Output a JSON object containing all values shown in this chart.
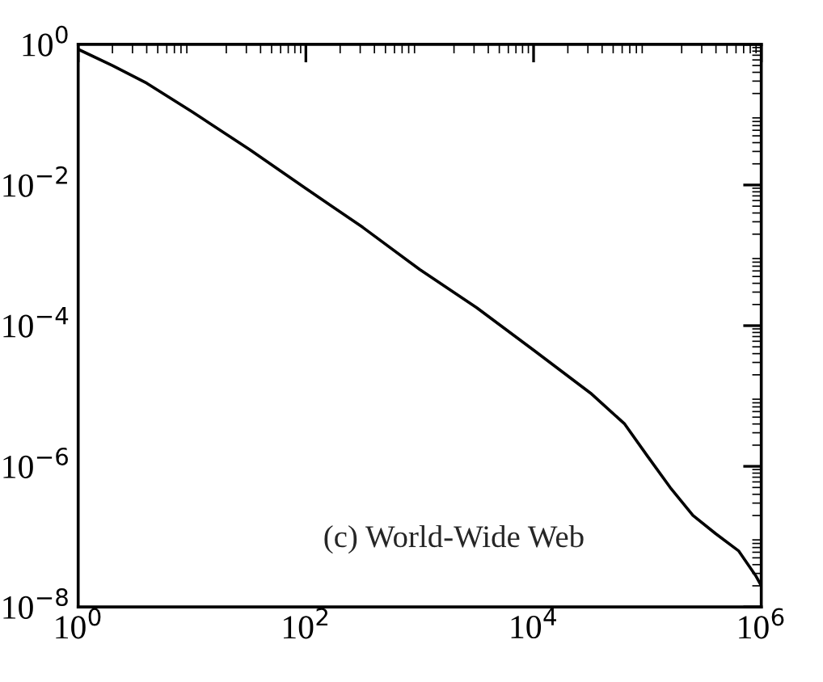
{
  "chart_data": {
    "type": "line",
    "log": "xy",
    "grid": false,
    "marker": "none",
    "line_style": "solid",
    "x": [
      1,
      2,
      4,
      10,
      32,
      100,
      316,
      1000,
      3162,
      10000,
      31623,
      63096,
      100000,
      158489,
      251189,
      398107,
      630957,
      891251,
      1000000
    ],
    "series": [
      {
        "color": "#000000",
        "values": [
          0.85,
          0.5,
          0.28,
          0.11,
          0.032,
          0.0089,
          0.0025,
          0.00063,
          0.00018,
          4.5e-05,
          1.1e-05,
          4e-06,
          1.4e-06,
          5e-07,
          2e-07,
          1.1e-07,
          6.3e-08,
          2.8e-08,
          2e-08
        ]
      }
    ],
    "xlim": [
      1,
      1000000
    ],
    "ylim": [
      1e-08,
      1
    ],
    "xticks": [
      {
        "value": 1,
        "label": "10$^{0}$"
      },
      {
        "value": 100,
        "label": "10$^{2}$"
      },
      {
        "value": 10000,
        "label": "10$^{4}$"
      },
      {
        "value": 1000000,
        "label": "10$^{6}$"
      }
    ],
    "yticks": [
      {
        "value": 1e-08,
        "label": "10$^{−8}$"
      },
      {
        "value": 1e-06,
        "label": "10$^{−6}$"
      },
      {
        "value": 0.0001,
        "label": "10$^{−4}$"
      },
      {
        "value": 0.01,
        "label": "10$^{−2}$"
      },
      {
        "value": 1,
        "label": "10$^{0}$"
      }
    ],
    "annotations": [
      "(c) World-Wide Web"
    ]
  }
}
